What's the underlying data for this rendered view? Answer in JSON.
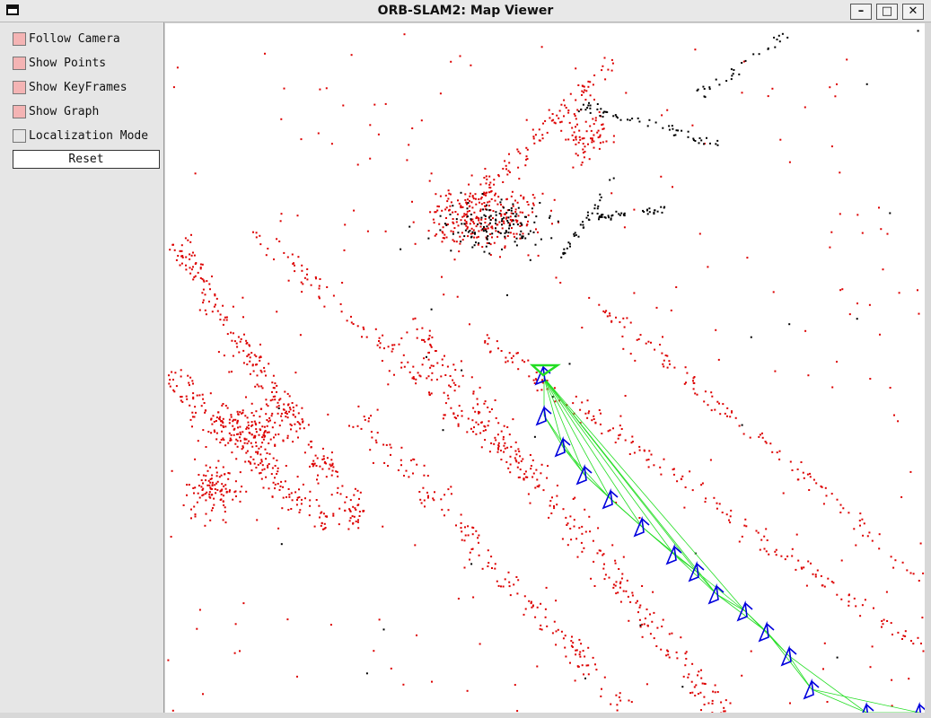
{
  "window": {
    "title": "ORB-SLAM2: Map Viewer",
    "buttons": {
      "minimize": "–",
      "maximize": "□",
      "close": "✕"
    }
  },
  "panel": {
    "options": [
      {
        "label": "Follow Camera",
        "checked": true
      },
      {
        "label": "Show Points",
        "checked": true
      },
      {
        "label": "Show KeyFrames",
        "checked": true
      },
      {
        "label": "Show Graph",
        "checked": true
      },
      {
        "label": "Localization Mode",
        "checked": false
      }
    ],
    "reset_label": "Reset"
  },
  "colors": {
    "map_points": "#dd0000",
    "reference_points": "#000000",
    "keyframes": "#0000dd",
    "graph": "#22dd22",
    "current_camera": "#22dd22",
    "panel_checked": "#f4b4b4"
  },
  "map": {
    "keyframe_count": 15,
    "current_camera_count": 1
  }
}
